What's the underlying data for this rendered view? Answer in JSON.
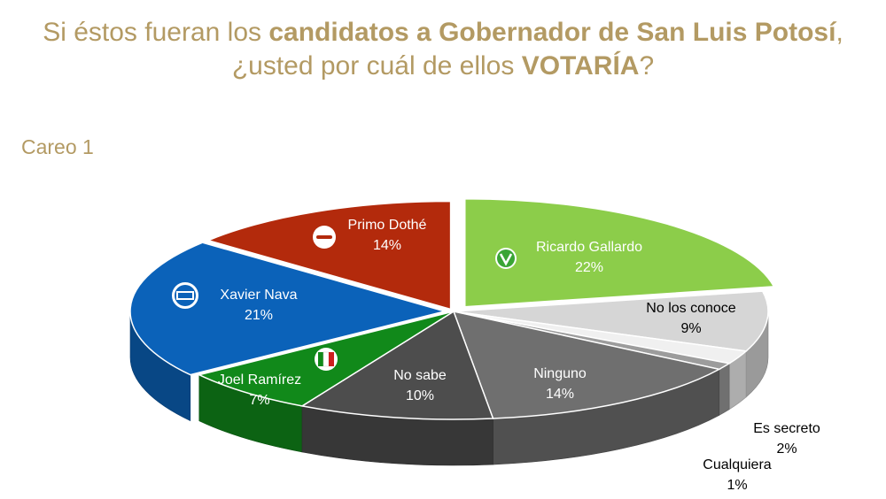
{
  "title": {
    "line1_plain": "Si éstos fueran los ",
    "line1_bold": "candidatos a Gobernador de San Luis Potosí",
    "line1_end": ",",
    "line2_plain": "¿usted por cuál de ellos ",
    "line2_bold": "VOTARÍA",
    "line2_end": "?"
  },
  "subtitle": "Careo 1",
  "colors": {
    "title": "#b39a63"
  },
  "chart_data": {
    "type": "pie",
    "style": "3d-exploded",
    "slices": [
      {
        "label": "Ricardo Gallardo",
        "value": 22,
        "value_label": "22%",
        "color": "#8ccd4a",
        "icon": "pvem-logo-icon"
      },
      {
        "label": "No los conoce",
        "value": 9,
        "value_label": "9%",
        "color": "#d6d6d6"
      },
      {
        "label": "Es secreto",
        "value": 2,
        "value_label": "2%",
        "color": "#f0f0f0"
      },
      {
        "label": "Cualquiera",
        "value": 1,
        "value_label": "1%",
        "color": "#9c9c9c"
      },
      {
        "label": "Ninguno",
        "value": 14,
        "value_label": "14%",
        "color": "#6f6f6f"
      },
      {
        "label": "No sabe",
        "value": 10,
        "value_label": "10%",
        "color": "#4d4d4d"
      },
      {
        "label": "Joel Ramírez",
        "value": 7,
        "value_label": "7%",
        "color": "#11891a",
        "icon": "pri-logo-icon"
      },
      {
        "label": "Xavier Nava",
        "value": 21,
        "value_label": "21%",
        "color": "#0b62b9",
        "icon": "pan-logo-icon"
      },
      {
        "label": "Primo Dothé",
        "value": 14,
        "value_label": "14%",
        "color": "#b32a0c",
        "icon": "morena-logo-icon"
      }
    ]
  }
}
